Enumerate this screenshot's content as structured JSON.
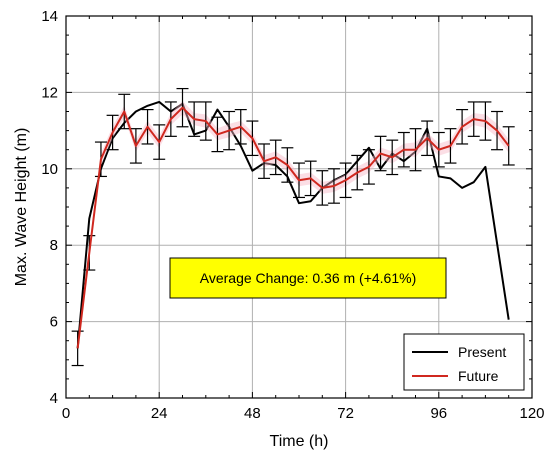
{
  "chart_data": {
    "type": "line",
    "xlabel": "Time (h)",
    "ylabel": "Max. Wave Height (m)",
    "xlim": [
      0,
      120
    ],
    "ylim": [
      4,
      14
    ],
    "xticks": [
      "0",
      "24",
      "48",
      "72",
      "96",
      "120"
    ],
    "yticks": [
      "4",
      "6",
      "8",
      "10",
      "12",
      "14"
    ],
    "grid": true,
    "legend": "bottom-right",
    "annotation": "Average Change: 0.36 m (+4.61%)",
    "series": [
      {
        "name": "Present",
        "color": "#000000",
        "x": [
          3,
          6,
          9,
          12,
          15,
          18,
          21,
          24,
          27,
          30,
          33,
          36,
          39,
          42,
          45,
          48,
          51,
          54,
          57,
          60,
          63,
          66,
          69,
          72,
          75,
          78,
          81,
          84,
          87,
          90,
          93,
          96,
          99,
          102,
          105,
          108,
          114
        ],
        "y": [
          5.3,
          8.7,
          10.0,
          10.8,
          11.2,
          11.5,
          11.65,
          11.75,
          11.5,
          11.7,
          10.9,
          11.0,
          11.55,
          11.1,
          10.6,
          9.95,
          10.15,
          10.1,
          9.8,
          9.1,
          9.15,
          9.5,
          9.7,
          9.85,
          10.2,
          10.55,
          10.0,
          10.4,
          10.2,
          10.45,
          11.05,
          9.8,
          9.75,
          9.5,
          9.65,
          10.05,
          6.05
        ]
      },
      {
        "name": "Future",
        "color": "#d0281f",
        "x": [
          3,
          6,
          9,
          12,
          15,
          18,
          21,
          24,
          27,
          30,
          33,
          36,
          39,
          42,
          45,
          48,
          51,
          54,
          57,
          60,
          63,
          66,
          69,
          72,
          75,
          78,
          81,
          84,
          87,
          90,
          93,
          96,
          99,
          102,
          105,
          108,
          111,
          114
        ],
        "y": [
          5.3,
          7.8,
          10.25,
          10.95,
          11.5,
          10.6,
          11.1,
          10.7,
          11.3,
          11.6,
          11.3,
          11.25,
          10.9,
          11.0,
          11.1,
          10.8,
          10.2,
          10.3,
          10.1,
          9.7,
          9.75,
          9.5,
          9.55,
          9.7,
          9.9,
          10.05,
          10.4,
          10.3,
          10.5,
          10.5,
          10.8,
          10.5,
          10.6,
          11.1,
          11.3,
          11.25,
          11.0,
          10.6
        ],
        "err": [
          0.45,
          0.45,
          0.45,
          0.45,
          0.45,
          0.45,
          0.45,
          0.45,
          0.45,
          0.5,
          0.45,
          0.5,
          0.45,
          0.5,
          0.45,
          0.45,
          0.45,
          0.45,
          0.45,
          0.45,
          0.45,
          0.45,
          0.45,
          0.45,
          0.45,
          0.45,
          0.45,
          0.45,
          0.45,
          0.55,
          0.45,
          0.45,
          0.45,
          0.45,
          0.45,
          0.5,
          0.5,
          0.5
        ]
      }
    ]
  }
}
